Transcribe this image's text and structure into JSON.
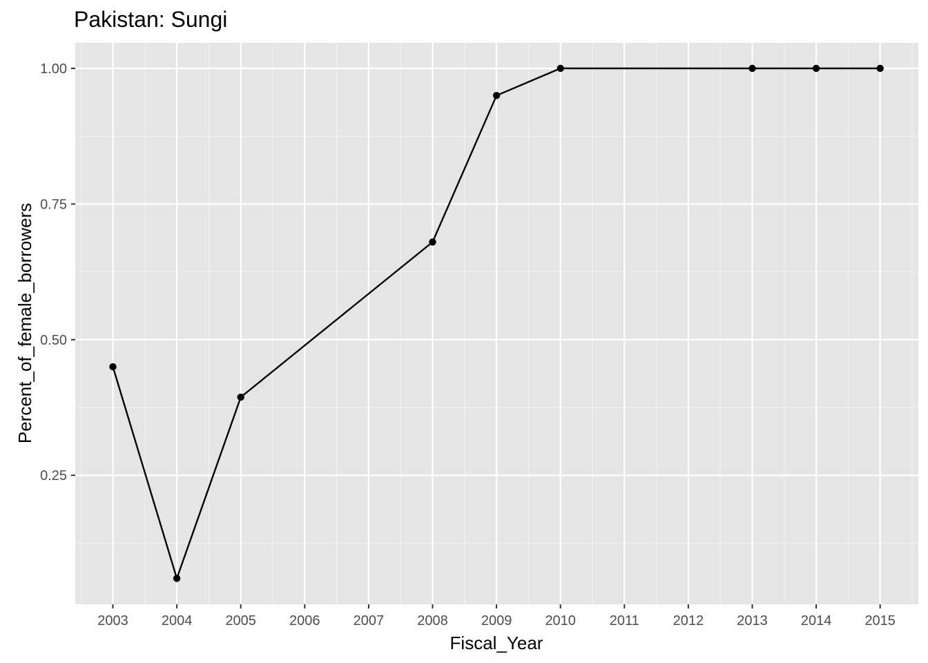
{
  "chart_data": {
    "type": "line",
    "title": "Pakistan:  Sungi",
    "xlabel": "Fiscal_Year",
    "ylabel": "Percent_of_female_borrowers",
    "x_categories": [
      "2003",
      "2004",
      "2005",
      "2006",
      "2007",
      "2008",
      "2009",
      "2010",
      "2011",
      "2012",
      "2013",
      "2014",
      "2015"
    ],
    "y_ticks": [
      0.25,
      0.5,
      0.75,
      1.0
    ],
    "y_tick_labels": [
      "0.25",
      "0.50",
      "0.75",
      "1.00"
    ],
    "ylim": [
      0.035,
      1.025
    ],
    "grid": true,
    "legend": "none",
    "series": [
      {
        "points": [
          {
            "x": "2003",
            "y": 0.45
          },
          {
            "x": "2004",
            "y": 0.06
          },
          {
            "x": "2005",
            "y": 0.394
          },
          {
            "x": "2008",
            "y": 0.68
          },
          {
            "x": "2009",
            "y": 0.95
          },
          {
            "x": "2010",
            "y": 1.0
          },
          {
            "x": "2013",
            "y": 1.0
          },
          {
            "x": "2014",
            "y": 1.0
          },
          {
            "x": "2015",
            "y": 1.0
          }
        ]
      }
    ],
    "colors": {
      "panel": "#e5e5e5",
      "grid": "#ffffff",
      "line": "#000000",
      "point": "#000000"
    }
  }
}
